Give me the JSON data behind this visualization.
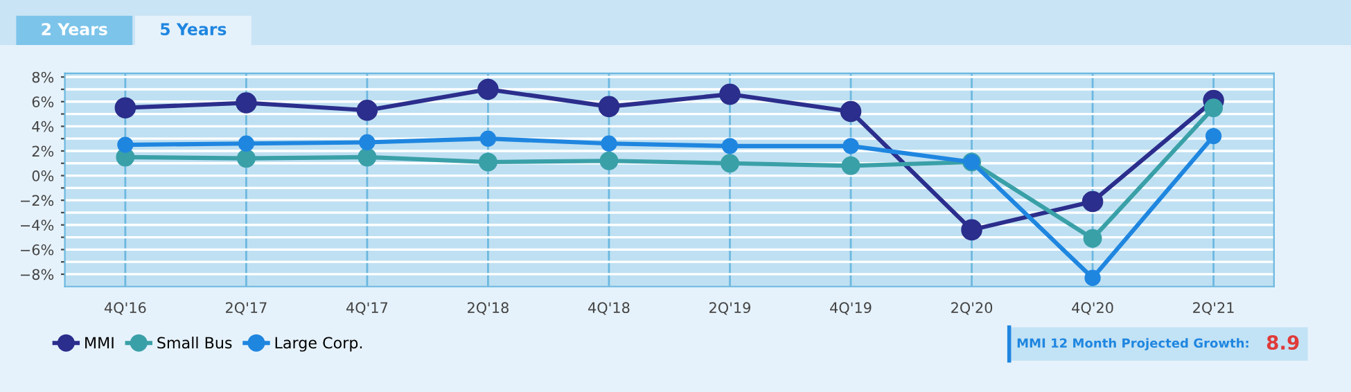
{
  "chart_data": {
    "type": "line",
    "categories": [
      "4Q'16",
      "2Q'17",
      "4Q'17",
      "2Q'18",
      "4Q'18",
      "2Q'19",
      "4Q'19",
      "2Q'20",
      "4Q'20",
      "2Q'21"
    ],
    "series": [
      {
        "name": "MMI",
        "color": "#2b2e8c",
        "values": [
          5.5,
          5.9,
          5.3,
          7.0,
          5.6,
          6.6,
          5.2,
          -4.4,
          -2.1,
          6.1
        ]
      },
      {
        "name": "Small Bus",
        "color": "#3aa0a8",
        "values": [
          1.5,
          1.4,
          1.5,
          1.1,
          1.2,
          1.0,
          0.8,
          1.1,
          -5.1,
          5.5
        ]
      },
      {
        "name": "Large Corp.",
        "color": "#1f86e0",
        "values": [
          2.5,
          2.6,
          2.7,
          3.0,
          2.6,
          2.4,
          2.4,
          1.1,
          -8.3,
          3.2
        ]
      }
    ],
    "ylim": [
      -9,
      8.3
    ],
    "yticks": [
      {
        "value": -8,
        "label": "−8%"
      },
      {
        "value": -7,
        "label": null
      },
      {
        "value": -6,
        "label": "−6%"
      },
      {
        "value": -5,
        "label": null
      },
      {
        "value": -4,
        "label": "−4%"
      },
      {
        "value": -3,
        "label": null
      },
      {
        "value": -2,
        "label": "−2%"
      },
      {
        "value": -1,
        "label": null
      },
      {
        "value": 0,
        "label": "0%"
      },
      {
        "value": 1,
        "label": null
      },
      {
        "value": 2,
        "label": "2%"
      },
      {
        "value": 3,
        "label": null
      },
      {
        "value": 4,
        "label": "4%"
      },
      {
        "value": 5,
        "label": null
      },
      {
        "value": 6,
        "label": "6%"
      },
      {
        "value": 7,
        "label": null
      },
      {
        "value": 8,
        "label": "8%"
      }
    ],
    "grid": true,
    "legend": "bottom left",
    "marker": "circle",
    "line_style": "solid",
    "annotations": [
      "2 Years",
      "5 Years",
      "MMI 12 Month Projected Growth:",
      "8.9"
    ]
  }
}
